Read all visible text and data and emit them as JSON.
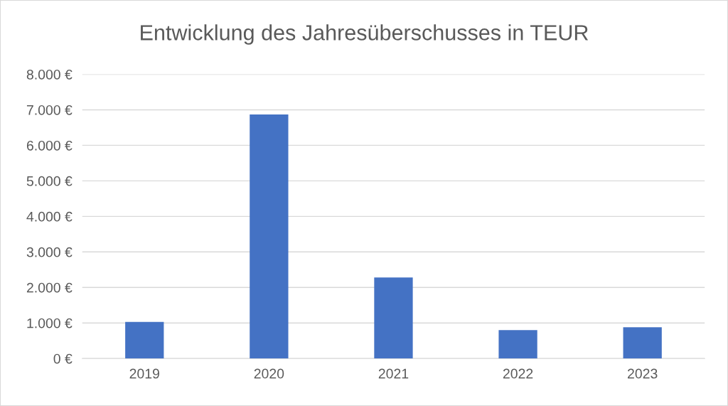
{
  "chart_data": {
    "type": "bar",
    "title": "Entwicklung des Jahresüberschusses in TEUR",
    "categories": [
      "2019",
      "2020",
      "2021",
      "2022",
      "2023"
    ],
    "values": [
      1030,
      6870,
      2280,
      800,
      880
    ],
    "color": "#4472c4",
    "ylim": [
      0,
      8000
    ],
    "yticks": [
      {
        "value": 0,
        "label": "0 €"
      },
      {
        "value": 1000,
        "label": "1.000 €"
      },
      {
        "value": 2000,
        "label": "2.000 €"
      },
      {
        "value": 3000,
        "label": "3.000 €"
      },
      {
        "value": 4000,
        "label": "4.000 €"
      },
      {
        "value": 5000,
        "label": "5.000 €"
      },
      {
        "value": 6000,
        "label": "6.000 €"
      },
      {
        "value": 7000,
        "label": "7.000 €"
      },
      {
        "value": 8000,
        "label": "8.000 €"
      }
    ],
    "grid": "y"
  }
}
